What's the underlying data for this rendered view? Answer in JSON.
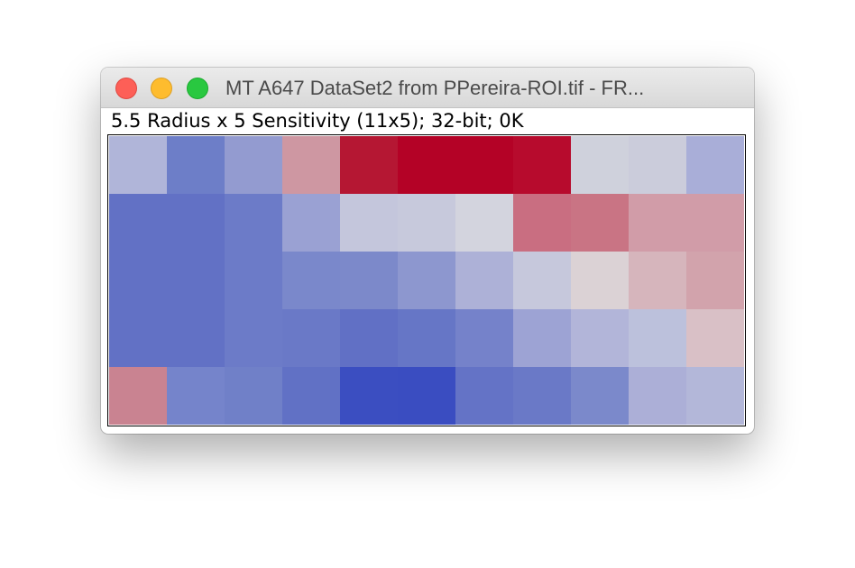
{
  "window": {
    "title": "MT A647 DataSet2 from PPereira-ROI.tif - FR...",
    "info_line": "5.5 Radius x 5 Sensitivity (11x5); 32-bit; 0K",
    "buttons": {
      "close": "close-button",
      "minimize": "minimize-button",
      "zoom": "zoom-button"
    },
    "traffic_colors": {
      "close": "#fd5f57",
      "minimize": "#febc2e",
      "zoom": "#29c840"
    }
  },
  "image": {
    "columns": 11,
    "rows": 5,
    "colormap": "blue-white-red",
    "pixel_colors": [
      [
        "#b0b5d9",
        "#6d7ec8",
        "#939bd0",
        "#ce97a2",
        "#b51733",
        "#b40226",
        "#b40226",
        "#b70b2d",
        "#cfd1dc",
        "#cbccdb",
        "#a9aed8"
      ],
      [
        "#6271c5",
        "#6271c5",
        "#6c7bc8",
        "#9aa1d3",
        "#c4c6dc",
        "#c7c9dc",
        "#d3d4de",
        "#c96e81",
        "#c97484",
        "#d19ca8",
        "#d19ca8"
      ],
      [
        "#6271c5",
        "#6271c5",
        "#6c7bc8",
        "#7a88cb",
        "#7c89ca",
        "#8d97cf",
        "#adb1d7",
        "#c6c8dc",
        "#dbd2d5",
        "#d6b5bc",
        "#d2a3ac"
      ],
      [
        "#6271c5",
        "#6271c5",
        "#6c7bc8",
        "#6a79c7",
        "#6170c5",
        "#6676c6",
        "#7582ca",
        "#9da3d4",
        "#b2b5d9",
        "#bcc1dc",
        "#d9c0c6"
      ],
      [
        "#c98391",
        "#7584cb",
        "#7080c8",
        "#6171c5",
        "#3b4ec1",
        "#3a4dc1",
        "#6473c6",
        "#6a79c7",
        "#7b89cb",
        "#acafd7",
        "#b3b7d9"
      ]
    ]
  }
}
